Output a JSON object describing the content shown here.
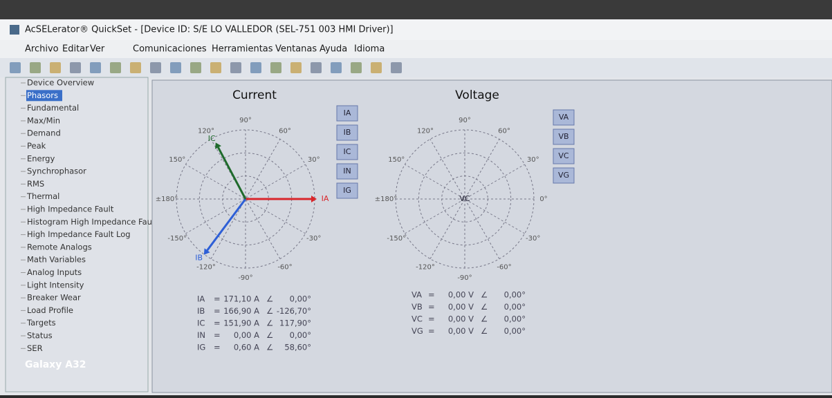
{
  "window": {
    "title": "AcSELerator® QuickSet - [Device ID: S/E LO VALLEDOR (SEL-751 003 HMI Driver)]",
    "menu": [
      "Archivo",
      "Editar",
      "Ver",
      "Comunicaciones",
      "Herramientas",
      "Ventanas",
      "Ayuda",
      "Idioma"
    ]
  },
  "tree": [
    "Device Overview",
    "Phasors",
    "Fundamental",
    "Max/Min",
    "Demand",
    "Peak",
    "Energy",
    "Synchrophasor",
    "RMS",
    "Thermal",
    "High Impedance Fault",
    "Histogram High Impedance Fau",
    "High Impedance Fault Log",
    "Remote Analogs",
    "Math Variables",
    "Analog Inputs",
    "Light Intensity",
    "Breaker Wear",
    "Load Profile",
    "Targets",
    "Status",
    "SER"
  ],
  "selected_tree_item": 1,
  "equals": "=",
  "angle_symbol": "∠",
  "current": {
    "title": "Current",
    "polar_labels": [
      {
        "value": 120,
        "label": "120°"
      },
      {
        "value": 90,
        "label": "90°"
      },
      {
        "value": 60,
        "label": "60°"
      },
      {
        "value": 150,
        "label": "150°"
      },
      {
        "value": 30,
        "label": "30°"
      },
      {
        "value": 180,
        "label": "±180°"
      },
      {
        "value": -150,
        "label": "-150°"
      },
      {
        "value": -30,
        "label": "-30°"
      },
      {
        "value": -120,
        "label": "-120°"
      },
      {
        "value": -90,
        "label": "-90°"
      },
      {
        "value": -60,
        "label": "-60°"
      }
    ],
    "phasors": [
      {
        "name": "IA",
        "color": "#d9262b",
        "magnitude": {
          "value": 171.1,
          "label": "171,10 A"
        },
        "angle": {
          "value": 0,
          "label": "0,00°"
        }
      },
      {
        "name": "IB",
        "color": "#2e5fd6",
        "magnitude": {
          "value": 166.9,
          "label": "166,90 A"
        },
        "angle": {
          "value": -126.7,
          "label": "-126,70°"
        }
      },
      {
        "name": "IC",
        "color": "#1f6b2c",
        "magnitude": {
          "value": 151.9,
          "label": "151,90 A"
        },
        "angle": {
          "value": 117.9,
          "label": "117,90°"
        }
      },
      {
        "name": "IN",
        "magnitude": {
          "value": 0,
          "label": "0,00 A"
        },
        "angle": {
          "value": 0,
          "label": "0,00°"
        }
      },
      {
        "name": "IG",
        "magnitude": {
          "value": 0.6,
          "label": "0,60 A"
        },
        "angle": {
          "value": 58.6,
          "label": "58,60°"
        }
      }
    ]
  },
  "voltage": {
    "title": "Voltage",
    "polar_labels": [
      {
        "value": 120,
        "label": "120°"
      },
      {
        "value": 90,
        "label": "90°"
      },
      {
        "value": 60,
        "label": "60°"
      },
      {
        "value": 150,
        "label": "150°"
      },
      {
        "value": 30,
        "label": "30°"
      },
      {
        "value": 180,
        "label": "±180°"
      },
      {
        "value": 0,
        "label": "0°"
      },
      {
        "value": -150,
        "label": "-150°"
      },
      {
        "value": -30,
        "label": "-30°"
      },
      {
        "value": -120,
        "label": "-120°"
      },
      {
        "value": -90,
        "label": "-90°"
      },
      {
        "value": -60,
        "label": "-60°"
      }
    ],
    "phasors": [
      {
        "name": "VA",
        "magnitude": {
          "value": 0,
          "label": "0,00 V"
        },
        "angle": {
          "value": 0,
          "label": "0,00°"
        }
      },
      {
        "name": "VB",
        "magnitude": {
          "value": 0,
          "label": "0,00 V"
        },
        "angle": {
          "value": 0,
          "label": "0,00°"
        }
      },
      {
        "name": "VC",
        "magnitude": {
          "value": 0,
          "label": "0,00 V"
        },
        "angle": {
          "value": 0,
          "label": "0,00°"
        }
      },
      {
        "name": "VG",
        "magnitude": {
          "value": 0,
          "label": "0,00 V"
        },
        "angle": {
          "value": 0,
          "label": "0,00°"
        }
      }
    ]
  },
  "watermark": "Galaxy A32"
}
